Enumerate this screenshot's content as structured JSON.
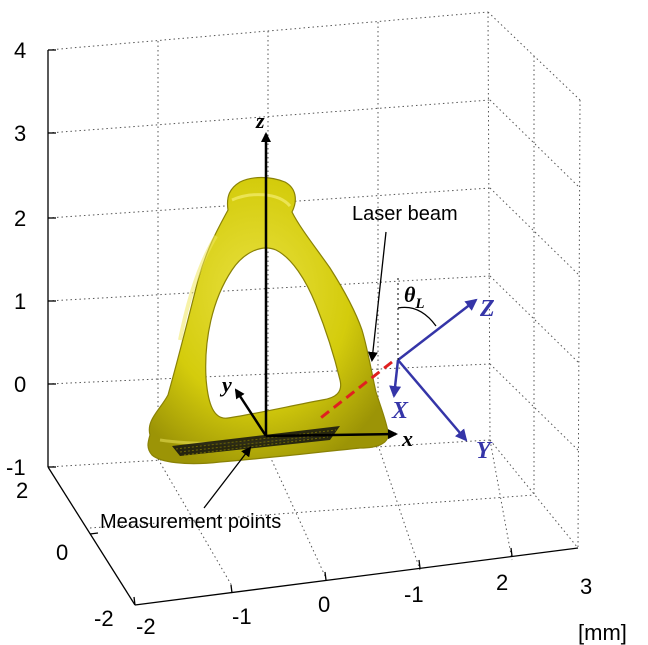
{
  "z_ticks": [
    "4",
    "3",
    "2",
    "1",
    "0",
    "-1"
  ],
  "y_ticks": [
    "2",
    "0",
    "-2"
  ],
  "x_ticks": [
    "-2",
    "-1",
    "0",
    "-1",
    "2",
    "3"
  ],
  "unit_label": "[mm]",
  "labels": {
    "laser_beam": "Laser beam",
    "measurement_points": "Measurement points",
    "theta": "θ",
    "theta_sub": "L"
  },
  "local_axes": {
    "z": "z",
    "y": "y",
    "x": "x"
  },
  "beam_axes": {
    "Z": "Z",
    "X": "X",
    "Y": "Y"
  },
  "colors": {
    "specimen": "#d4cc0c",
    "specimen_shadow": "#9c9406",
    "beam_axes": "#3535a8",
    "laser": "#e02020"
  }
}
